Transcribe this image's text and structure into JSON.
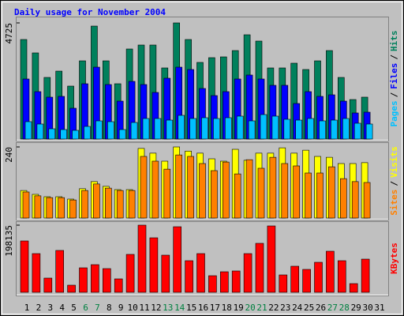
{
  "title": "Daily usage for November 2004",
  "chart_data": [
    {
      "type": "bar",
      "ylim": [
        0,
        4725
      ],
      "yticks": [
        4725
      ],
      "legend_separator": "/",
      "series": [
        {
          "name": "Hits",
          "color": "#00805c",
          "values": [
            4050,
            3504,
            2507,
            2764,
            2154,
            3182,
            4596,
            3182,
            2250,
            3664,
            3825,
            3825,
            2893,
            4725,
            4050,
            3118,
            3311,
            3343,
            3600,
            4243,
            3986,
            2893,
            2893,
            3086,
            2829,
            3182,
            3600,
            2507,
            1607,
            1704,
            null
          ]
        },
        {
          "name": "Files",
          "color": "#0000ff",
          "values": [
            2443,
            1929,
            1704,
            1736,
            1254,
            2250,
            2925,
            2218,
            1543,
            2346,
            2218,
            1896,
            2475,
            2925,
            2829,
            2057,
            1768,
            1929,
            2443,
            2604,
            2443,
            2186,
            2186,
            1446,
            1929,
            1736,
            1800,
            1543,
            1061,
            1093,
            null
          ]
        },
        {
          "name": "Pages",
          "color": "#00c0ff",
          "values": [
            707,
            611,
            418,
            386,
            354,
            514,
            739,
            707,
            386,
            675,
            836,
            836,
            771,
            964,
            836,
            868,
            836,
            868,
            932,
            739,
            996,
            932,
            804,
            771,
            836,
            739,
            771,
            836,
            643,
            611,
            null
          ]
        }
      ]
    },
    {
      "type": "bar",
      "ylim": [
        0,
        240
      ],
      "yticks": [
        240
      ],
      "legend_separator": "/",
      "series": [
        {
          "name": "Visits",
          "color": "#ffff00",
          "values": [
            93,
            80,
            72,
            72,
            64,
            99,
            123,
            107,
            96,
            96,
            235,
            219,
            192,
            240,
            226,
            219,
            200,
            192,
            232,
            195,
            219,
            219,
            237,
            219,
            229,
            208,
            205,
            184,
            184,
            187,
            null
          ]
        },
        {
          "name": "Sites",
          "color": "#ff8000",
          "values": [
            88,
            75,
            69,
            69,
            61,
            93,
            115,
            101,
            93,
            93,
            208,
            192,
            165,
            213,
            208,
            184,
            160,
            189,
            149,
            197,
            168,
            205,
            184,
            176,
            152,
            152,
            173,
            133,
            123,
            120,
            null
          ]
        }
      ]
    },
    {
      "type": "bar",
      "ylim": [
        0,
        198135
      ],
      "yticks": [
        198135
      ],
      "categories": [
        "1",
        "2",
        "3",
        "4",
        "5",
        "6",
        "7",
        "8",
        "9",
        "10",
        "11",
        "12",
        "13",
        "14",
        "15",
        "16",
        "17",
        "18",
        "19",
        "20",
        "21",
        "22",
        "23",
        "24",
        "25",
        "26",
        "27",
        "28",
        "29",
        "30",
        "31"
      ],
      "highlight_categories": [
        5,
        6,
        12,
        13,
        19,
        20,
        26,
        27
      ],
      "highlight_color": "#008040",
      "series": [
        {
          "name": "KBytes",
          "color": "#ff0000",
          "values": [
            151515,
            114219,
            41958,
            123543,
            20979,
            72261,
            81585,
            69930,
            39627,
            111888,
            198135,
            160839,
            109557,
            193473,
            93240,
            114219,
            48951,
            60606,
            62937,
            114219,
            144522,
            195804,
            51282,
            76923,
            67599,
            88578,
            121212,
            93240,
            25641,
            97902,
            null
          ]
        }
      ]
    }
  ]
}
